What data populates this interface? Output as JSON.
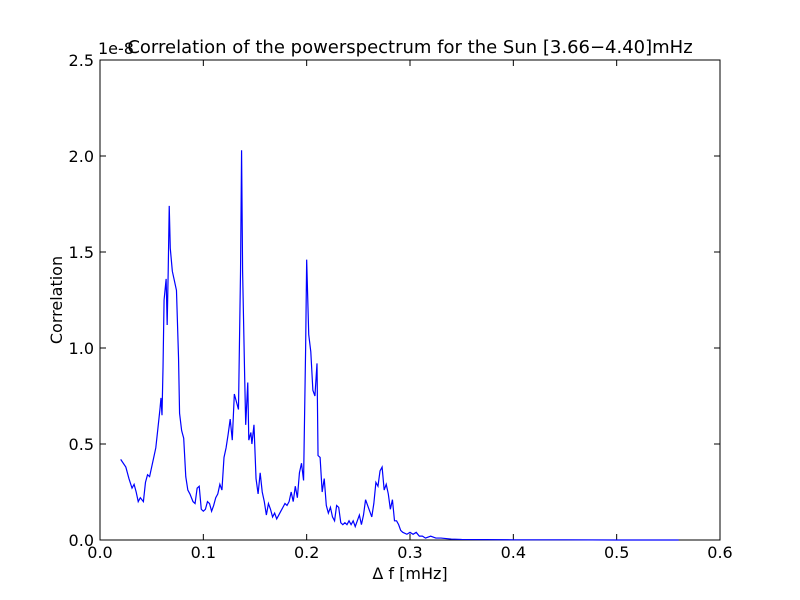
{
  "chart_data": {
    "type": "line",
    "title": "Correlation of the powerspectrum for the Sun [3.66−4.40]mHz",
    "x_label": "Δ f [mHz]",
    "y_label": "Correlation",
    "y_offset_label": "1e-8",
    "xlim": [
      0,
      0.6
    ],
    "ylim": [
      0,
      2.5
    ],
    "xticks": [
      {
        "value": 0,
        "label": "0.0"
      },
      0.1,
      0.2,
      0.3,
      0.4,
      0.5,
      0.6
    ],
    "yticks": [
      {
        "value": 0,
        "label": "0.0"
      },
      0.5,
      {
        "value": 1,
        "label": "1.0"
      },
      1.5,
      {
        "value": 2,
        "label": "2.0"
      },
      2.5
    ],
    "grid": false,
    "series": [
      {
        "name": "Correlation",
        "color": "#0000ff",
        "x": [
          0.02,
          0.025,
          0.028,
          0.031,
          0.033,
          0.035,
          0.037,
          0.039,
          0.042,
          0.044,
          0.046,
          0.048,
          0.05,
          0.052,
          0.054,
          0.056,
          0.058,
          0.059,
          0.06,
          0.061,
          0.062,
          0.064,
          0.065,
          0.066,
          0.067,
          0.068,
          0.07,
          0.072,
          0.074,
          0.076,
          0.077,
          0.079,
          0.081,
          0.083,
          0.085,
          0.087,
          0.09,
          0.092,
          0.094,
          0.096,
          0.098,
          0.1,
          0.102,
          0.104,
          0.106,
          0.108,
          0.11,
          0.112,
          0.114,
          0.116,
          0.118,
          0.12,
          0.122,
          0.124,
          0.126,
          0.128,
          0.13,
          0.132,
          0.134,
          0.136,
          0.137,
          0.138,
          0.14,
          0.141,
          0.143,
          0.144,
          0.146,
          0.147,
          0.149,
          0.151,
          0.153,
          0.155,
          0.157,
          0.159,
          0.161,
          0.163,
          0.165,
          0.167,
          0.169,
          0.171,
          0.173,
          0.175,
          0.177,
          0.179,
          0.181,
          0.183,
          0.185,
          0.187,
          0.189,
          0.191,
          0.193,
          0.195,
          0.197,
          0.199,
          0.2,
          0.202,
          0.204,
          0.206,
          0.208,
          0.21,
          0.211,
          0.213,
          0.215,
          0.217,
          0.219,
          0.221,
          0.223,
          0.225,
          0.227,
          0.229,
          0.231,
          0.233,
          0.235,
          0.237,
          0.239,
          0.241,
          0.243,
          0.245,
          0.247,
          0.249,
          0.251,
          0.253,
          0.255,
          0.257,
          0.259,
          0.261,
          0.263,
          0.265,
          0.267,
          0.269,
          0.271,
          0.273,
          0.275,
          0.277,
          0.279,
          0.281,
          0.283,
          0.285,
          0.287,
          0.289,
          0.291,
          0.293,
          0.297,
          0.3,
          0.303,
          0.306,
          0.309,
          0.312,
          0.315,
          0.32,
          0.325,
          0.33,
          0.34,
          0.35,
          0.4,
          0.45,
          0.5,
          0.56
        ],
        "values": [
          0.42,
          0.38,
          0.32,
          0.27,
          0.29,
          0.25,
          0.2,
          0.22,
          0.2,
          0.3,
          0.34,
          0.33,
          0.38,
          0.43,
          0.48,
          0.58,
          0.68,
          0.74,
          0.65,
          0.9,
          1.25,
          1.36,
          1.12,
          1.4,
          1.74,
          1.52,
          1.4,
          1.35,
          1.3,
          0.95,
          0.66,
          0.57,
          0.53,
          0.33,
          0.26,
          0.24,
          0.2,
          0.19,
          0.27,
          0.28,
          0.16,
          0.15,
          0.16,
          0.2,
          0.19,
          0.15,
          0.18,
          0.22,
          0.24,
          0.29,
          0.26,
          0.43,
          0.48,
          0.55,
          0.63,
          0.52,
          0.76,
          0.72,
          0.68,
          1.4,
          2.03,
          1.4,
          0.85,
          0.6,
          0.82,
          0.52,
          0.56,
          0.5,
          0.6,
          0.32,
          0.24,
          0.35,
          0.25,
          0.2,
          0.13,
          0.19,
          0.16,
          0.12,
          0.14,
          0.11,
          0.13,
          0.15,
          0.17,
          0.19,
          0.18,
          0.2,
          0.25,
          0.2,
          0.28,
          0.22,
          0.35,
          0.4,
          0.31,
          1.0,
          1.46,
          1.07,
          0.98,
          0.78,
          0.75,
          0.92,
          0.44,
          0.43,
          0.25,
          0.32,
          0.18,
          0.14,
          0.17,
          0.12,
          0.1,
          0.18,
          0.17,
          0.09,
          0.08,
          0.09,
          0.08,
          0.1,
          0.08,
          0.1,
          0.07,
          0.1,
          0.13,
          0.08,
          0.13,
          0.21,
          0.18,
          0.15,
          0.12,
          0.19,
          0.3,
          0.28,
          0.36,
          0.38,
          0.26,
          0.29,
          0.24,
          0.16,
          0.21,
          0.1,
          0.1,
          0.08,
          0.05,
          0.04,
          0.03,
          0.04,
          0.03,
          0.04,
          0.02,
          0.02,
          0.01,
          0.02,
          0.01,
          0.01,
          0.005,
          0.003,
          0.001,
          0.001,
          0,
          0
        ]
      }
    ]
  }
}
